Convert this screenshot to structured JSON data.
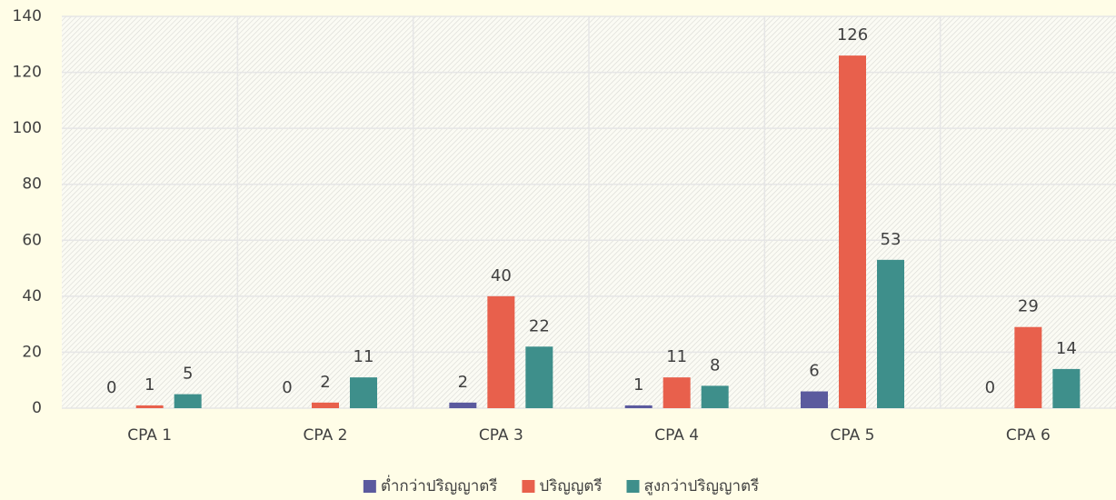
{
  "chart_data": {
    "type": "bar",
    "categories": [
      "CPA 1",
      "CPA 2",
      "CPA 3",
      "CPA 4",
      "CPA 5",
      "CPA 6"
    ],
    "series": [
      {
        "name": "ต่ำกว่าปริญญาตรี",
        "color": "#5b5a9e",
        "values": [
          0,
          0,
          2,
          1,
          6,
          0
        ]
      },
      {
        "name": "ปริญญตรี",
        "color": "#e8604c",
        "values": [
          1,
          2,
          40,
          11,
          126,
          29
        ]
      },
      {
        "name": "สูงกว่าปริญญาตรี",
        "color": "#3e8f8b",
        "values": [
          5,
          11,
          22,
          8,
          53,
          14
        ]
      }
    ],
    "ylim": [
      0,
      140
    ],
    "yticks": [
      0,
      20,
      40,
      60,
      80,
      100,
      120,
      140
    ],
    "grid": true,
    "legend": "bottom"
  }
}
